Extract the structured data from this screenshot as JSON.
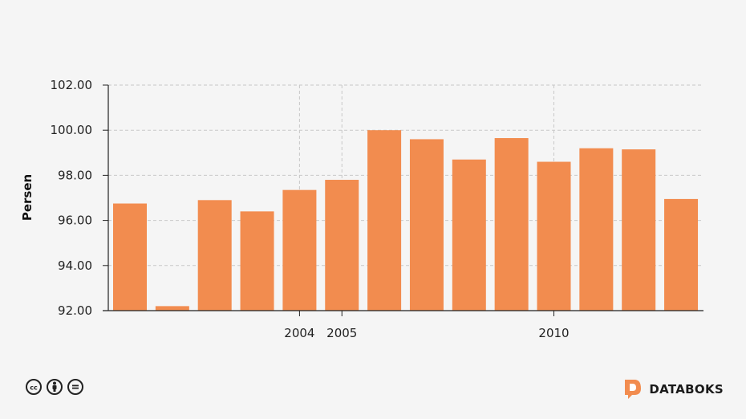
{
  "chart_data": {
    "type": "bar",
    "ylabel": "Persen",
    "ylim": [
      92,
      102
    ],
    "yticks": [
      "92.00",
      "94.00",
      "96.00",
      "98.00",
      "100.00",
      "102.00"
    ],
    "x": [
      2000,
      2001,
      2002,
      2003,
      2004,
      2005,
      2006,
      2007,
      2008,
      2009,
      2010,
      2011,
      2012,
      2013
    ],
    "xticks": [
      {
        "value": 2004,
        "label": "2004"
      },
      {
        "value": 2005,
        "label": "2005"
      },
      {
        "value": 2010,
        "label": "2010"
      }
    ],
    "values": [
      96.75,
      92.2,
      96.9,
      96.4,
      97.35,
      97.8,
      100.0,
      99.6,
      98.7,
      99.65,
      98.6,
      99.2,
      99.15,
      96.95
    ],
    "bar_color": "#f28c4f",
    "grid": true
  },
  "footer": {
    "license_icons": [
      "cc-icon",
      "by-icon",
      "nd-icon"
    ],
    "brand": "DATABOKS",
    "brand_color": "#f28c4f"
  }
}
